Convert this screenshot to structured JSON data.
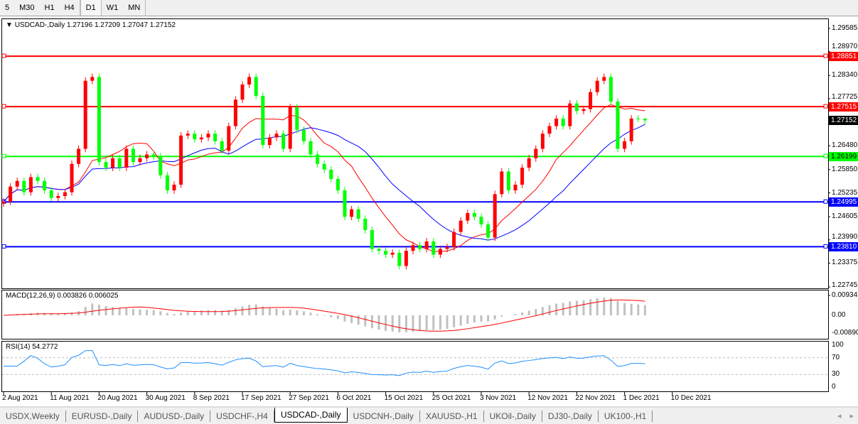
{
  "toolbar": {
    "timeframes": [
      "5",
      "M30",
      "H1",
      "H4",
      "D1",
      "W1",
      "MN"
    ],
    "active": "D1"
  },
  "chart": {
    "legend": "USDCAD-,Daily  1.27196 1.27209 1.27047 1.27152",
    "symbol": "USDCAD-",
    "period": "Daily",
    "last_ohlc": [
      1.27196,
      1.27209,
      1.27047,
      1.27152
    ],
    "bull_color": "#ff0000",
    "bear_color": "#00ff00",
    "ma_fast_color": "#ff0000",
    "ma_slow_color": "#0000ff",
    "price_ticks": [
      "1.29585",
      "1.28970",
      "1.28340",
      "1.27725",
      "1.26480",
      "1.25850",
      "1.25235",
      "1.24605",
      "1.23990",
      "1.23375",
      "1.22745"
    ],
    "current_price": "1.27152",
    "hlines": [
      {
        "price": "1.28851",
        "color": "#ff0000"
      },
      {
        "price": "1.27515",
        "color": "#ff0000"
      },
      {
        "price": "1.26199",
        "color": "#00ff00"
      },
      {
        "price": "1.24995",
        "color": "#0000ff"
      },
      {
        "price": "1.23810",
        "color": "#0000ff"
      }
    ],
    "closes": [
      1.25,
      1.254,
      1.2555,
      1.2525,
      1.2565,
      1.2555,
      1.253,
      1.251,
      1.2515,
      1.2525,
      1.26,
      1.264,
      1.282,
      1.283,
      1.2605,
      1.259,
      1.2615,
      1.259,
      1.264,
      1.2605,
      1.2615,
      1.2625,
      1.262,
      1.257,
      1.253,
      1.2545,
      1.2675,
      1.268,
      1.2665,
      1.267,
      1.268,
      1.266,
      1.2635,
      1.27,
      1.277,
      1.281,
      1.283,
      1.278,
      1.265,
      1.267,
      1.268,
      1.264,
      1.275,
      1.269,
      1.266,
      1.2625,
      1.26,
      1.2585,
      1.256,
      1.253,
      1.246,
      1.248,
      1.2455,
      1.2425,
      1.2375,
      1.237,
      1.236,
      1.2365,
      1.233,
      1.237,
      1.2385,
      1.2375,
      1.2395,
      1.236,
      1.2375,
      1.238,
      1.242,
      1.245,
      1.247,
      1.246,
      1.244,
      1.2405,
      1.252,
      1.258,
      1.253,
      1.2545,
      1.259,
      1.2615,
      1.264,
      1.268,
      1.27,
      1.272,
      1.27,
      1.276,
      1.274,
      1.2745,
      1.279,
      1.282,
      1.283,
      1.2765,
      1.264,
      1.266,
      1.272,
      1.27196,
      1.27152
    ],
    "dates": [
      "2 Aug 2021",
      "11 Aug 2021",
      "20 Aug 2021",
      "30 Aug 2021",
      "8 Sep 2021",
      "17 Sep 2021",
      "27 Sep 2021",
      "6 Oct 2021",
      "15 Oct 2021",
      "25 Oct 2021",
      "3 Nov 2021",
      "12 Nov 2021",
      "22 Nov 2021",
      "1 Dec 2021",
      "10 Dec 2021"
    ]
  },
  "macd": {
    "label": "MACD(12,26,9) 0.003826 0.006025",
    "ticks": [
      "0.009345",
      "0.00",
      "-0.008902"
    ],
    "hist_color": "#c0c0c0",
    "signal_color": "#ff0000"
  },
  "rsi": {
    "label": "RSI(14) 54.2772",
    "ticks": [
      "100",
      "70",
      "30",
      "0"
    ],
    "line_color": "#1e90ff"
  },
  "tabs": [
    "USDX,Weekly",
    "EURUSD-,Daily",
    "AUDUSD-,Daily",
    "USDCHF-,H4",
    "USDCAD-,Daily",
    "USDCNH-,Daily",
    "XAUUSD-,H1",
    "UKOil-,Daily",
    "DJ30-,Daily",
    "UK100-,H1"
  ],
  "active_tab": "USDCAD-,Daily"
}
